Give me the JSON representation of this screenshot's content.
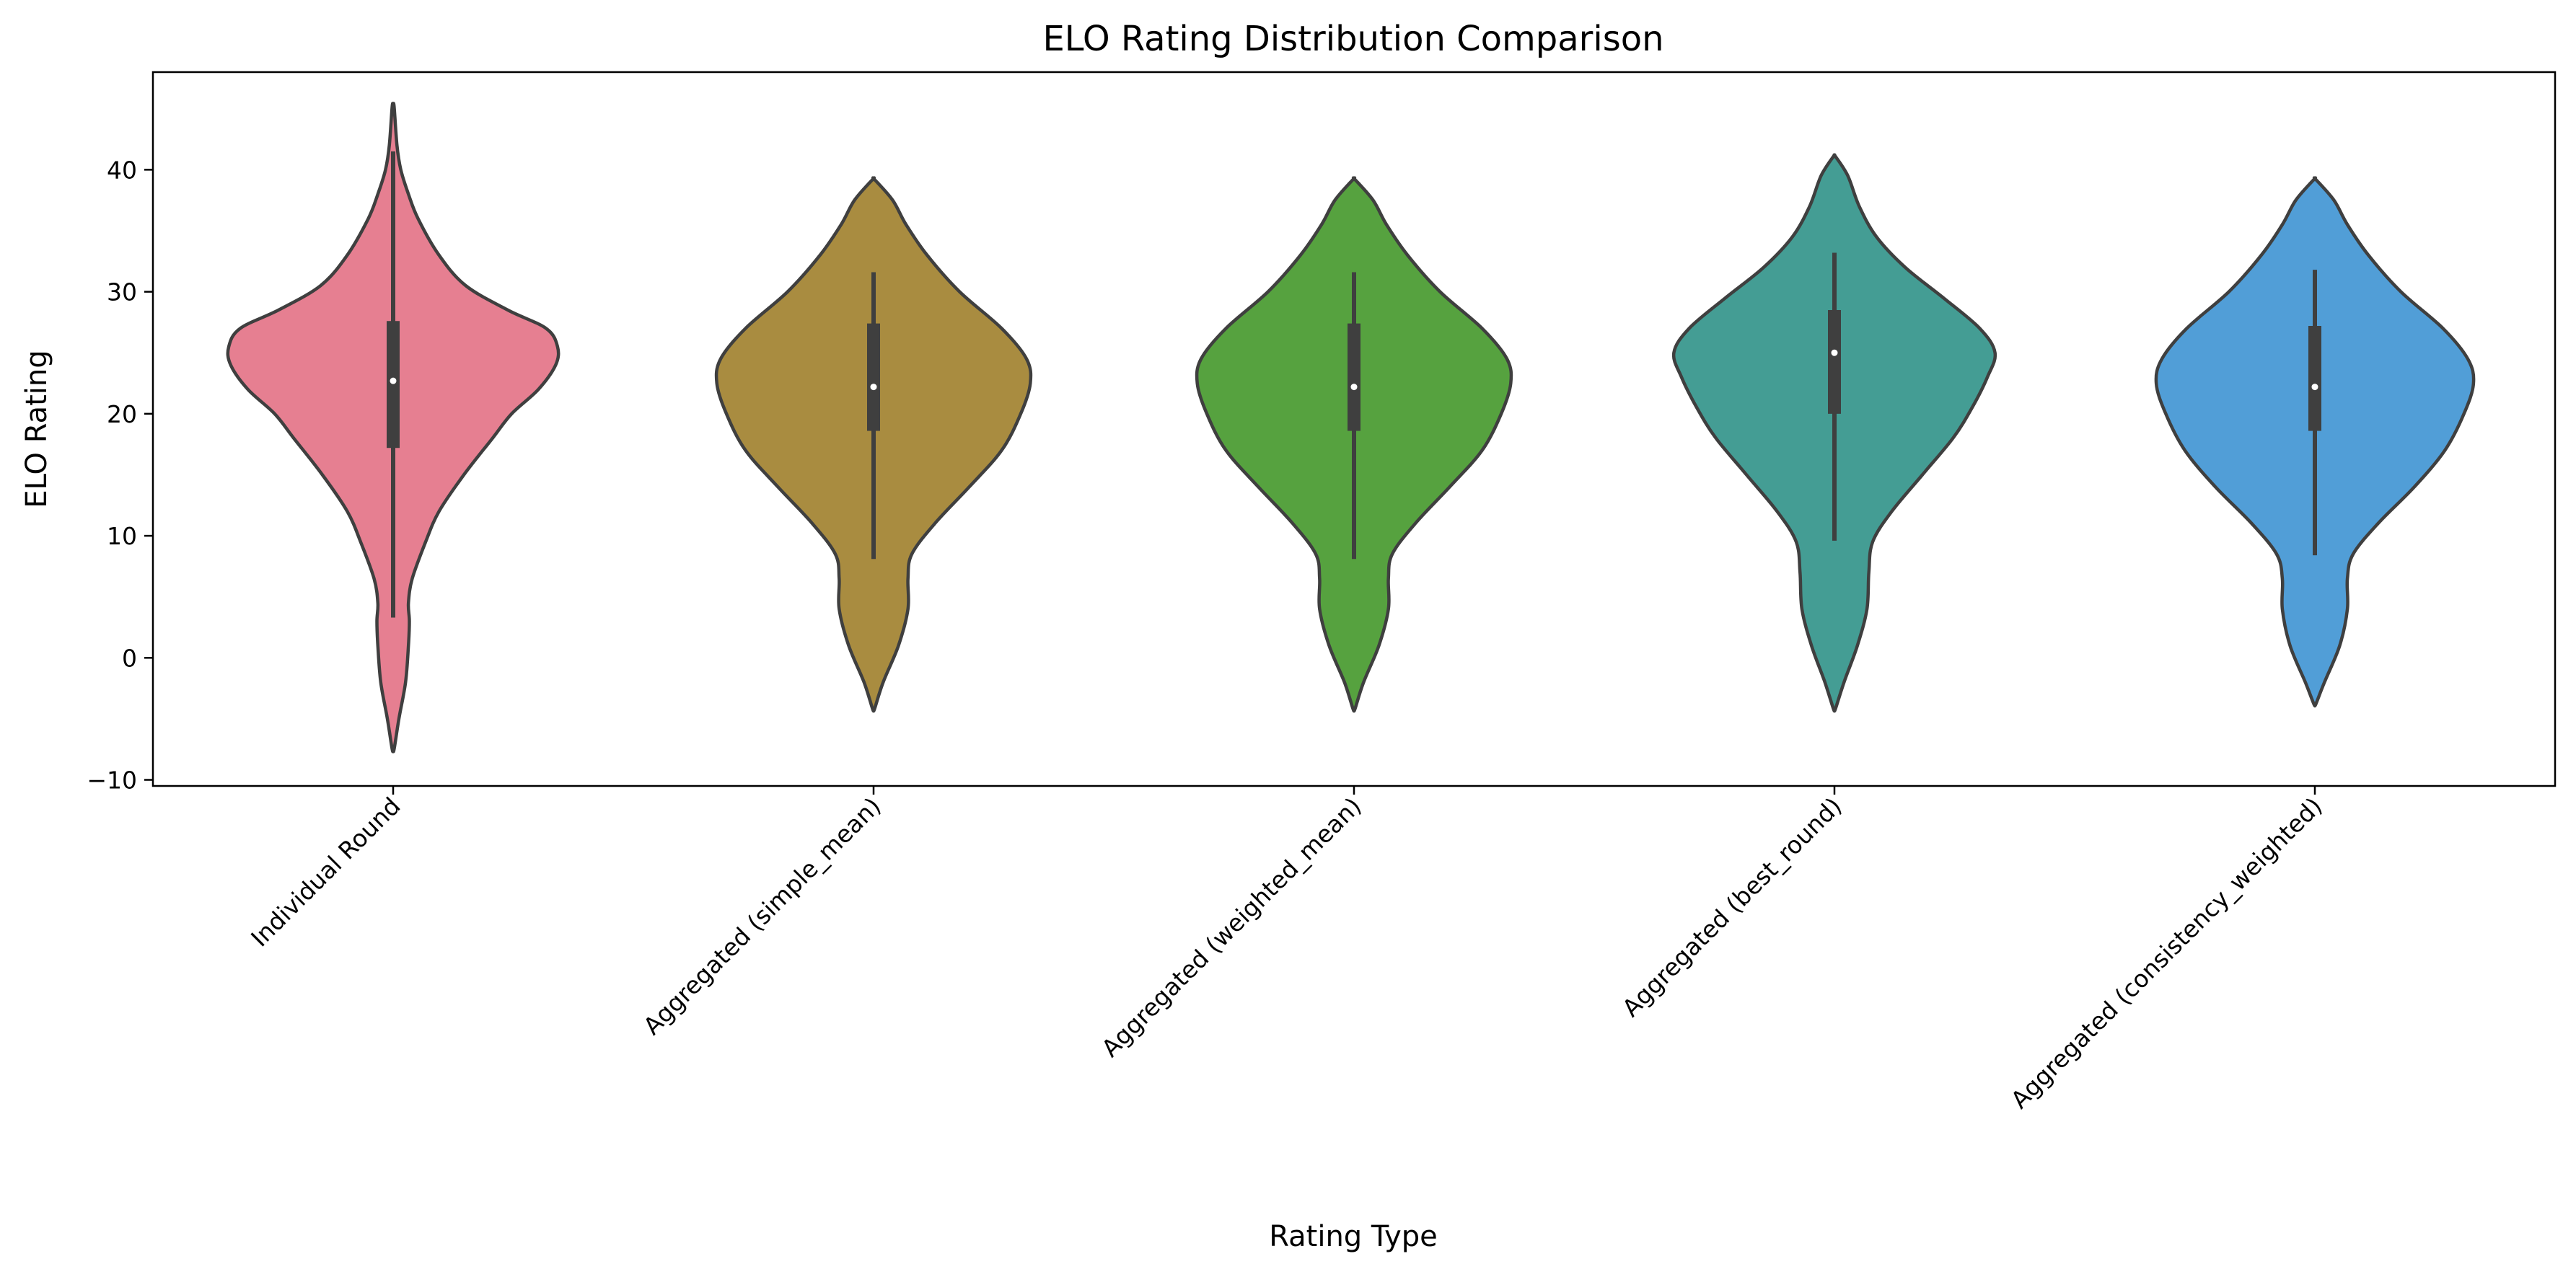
{
  "chart_data": {
    "type": "violin",
    "title": "ELO Rating Distribution Comparison",
    "xlabel": "Rating Type",
    "ylabel": "ELO Rating",
    "ylim": [
      -10.5,
      48
    ],
    "yticks": [
      -10,
      0,
      10,
      20,
      30,
      40
    ],
    "ytick_labels": [
      "−10",
      "0",
      "10",
      "20",
      "30",
      "40"
    ],
    "grid": false,
    "categories": [
      "Individual Round",
      "Aggregated (simple_mean)",
      "Aggregated (weighted_mean)",
      "Aggregated (best_round)",
      "Aggregated (consistency_weighted)"
    ],
    "colors": [
      "#e67f91",
      "#a98c40",
      "#56a23f",
      "#449d94",
      "#519ed7"
    ],
    "series": [
      {
        "min": -7.5,
        "max": 45.2,
        "whisker_low": 3.3,
        "q1": 17.2,
        "median": 22.7,
        "q3": 27.6,
        "whisker_high": 41.5,
        "density": [
          [
            -7.5,
            0.005
          ],
          [
            -5,
            0.03
          ],
          [
            -2,
            0.065
          ],
          [
            1,
            0.08
          ],
          [
            3,
            0.085
          ],
          [
            4.5,
            0.08
          ],
          [
            6.5,
            0.1
          ],
          [
            9.5,
            0.17
          ],
          [
            12,
            0.24
          ],
          [
            15,
            0.37
          ],
          [
            18,
            0.52
          ],
          [
            20,
            0.62
          ],
          [
            22,
            0.76
          ],
          [
            24,
            0.85
          ],
          [
            25.5,
            0.86
          ],
          [
            27,
            0.8
          ],
          [
            28.5,
            0.6
          ],
          [
            30.5,
            0.38
          ],
          [
            33,
            0.24
          ],
          [
            36,
            0.13
          ],
          [
            38,
            0.08
          ],
          [
            40,
            0.04
          ],
          [
            42,
            0.02
          ],
          [
            45.2,
            0.005
          ]
        ]
      },
      {
        "min": -4.2,
        "max": 39.2,
        "whisker_low": 8.1,
        "q1": 18.6,
        "median": 22.2,
        "q3": 27.4,
        "whisker_high": 31.6,
        "density": [
          [
            -4.2,
            0.005
          ],
          [
            -2,
            0.05
          ],
          [
            1,
            0.13
          ],
          [
            4,
            0.18
          ],
          [
            6.5,
            0.18
          ],
          [
            8.5,
            0.2
          ],
          [
            11,
            0.32
          ],
          [
            14,
            0.5
          ],
          [
            17,
            0.67
          ],
          [
            20,
            0.77
          ],
          [
            22.5,
            0.82
          ],
          [
            24.5,
            0.8
          ],
          [
            27,
            0.67
          ],
          [
            30,
            0.45
          ],
          [
            33,
            0.28
          ],
          [
            35.5,
            0.17
          ],
          [
            37.5,
            0.1
          ],
          [
            39.2,
            0.005
          ]
        ]
      },
      {
        "min": -4.2,
        "max": 39.2,
        "whisker_low": 8.1,
        "q1": 18.6,
        "median": 22.2,
        "q3": 27.4,
        "whisker_high": 31.6,
        "density": [
          [
            -4.2,
            0.005
          ],
          [
            -2,
            0.05
          ],
          [
            1,
            0.13
          ],
          [
            4,
            0.18
          ],
          [
            6.5,
            0.18
          ],
          [
            8.5,
            0.2
          ],
          [
            11,
            0.32
          ],
          [
            14,
            0.5
          ],
          [
            17,
            0.67
          ],
          [
            20,
            0.77
          ],
          [
            22.5,
            0.82
          ],
          [
            24.5,
            0.8
          ],
          [
            27,
            0.67
          ],
          [
            30,
            0.45
          ],
          [
            33,
            0.28
          ],
          [
            35.5,
            0.17
          ],
          [
            37.5,
            0.1
          ],
          [
            39.2,
            0.005
          ]
        ]
      },
      {
        "min": -4.2,
        "max": 41.1,
        "whisker_low": 9.6,
        "q1": 20,
        "median": 25,
        "q3": 28.5,
        "whisker_high": 33.2,
        "density": [
          [
            -4.2,
            0.005
          ],
          [
            -2,
            0.05
          ],
          [
            1,
            0.12
          ],
          [
            4,
            0.17
          ],
          [
            7,
            0.18
          ],
          [
            9.5,
            0.2
          ],
          [
            12,
            0.3
          ],
          [
            15,
            0.46
          ],
          [
            18,
            0.62
          ],
          [
            20.5,
            0.72
          ],
          [
            23,
            0.8
          ],
          [
            25,
            0.84
          ],
          [
            27,
            0.76
          ],
          [
            29.5,
            0.57
          ],
          [
            32,
            0.37
          ],
          [
            34.5,
            0.22
          ],
          [
            37,
            0.13
          ],
          [
            39.5,
            0.07
          ],
          [
            41.1,
            0.005
          ]
        ]
      },
      {
        "min": -3.8,
        "max": 39.2,
        "whisker_low": 8.4,
        "q1": 18.6,
        "median": 22.2,
        "q3": 27.2,
        "whisker_high": 31.8,
        "density": [
          [
            -3.8,
            0.005
          ],
          [
            -2,
            0.05
          ],
          [
            1,
            0.13
          ],
          [
            4,
            0.17
          ],
          [
            6.5,
            0.17
          ],
          [
            8.5,
            0.2
          ],
          [
            11,
            0.33
          ],
          [
            14,
            0.52
          ],
          [
            17,
            0.68
          ],
          [
            20,
            0.78
          ],
          [
            22.5,
            0.83
          ],
          [
            24.5,
            0.8
          ],
          [
            27,
            0.67
          ],
          [
            30,
            0.45
          ],
          [
            33,
            0.28
          ],
          [
            35.5,
            0.17
          ],
          [
            37.5,
            0.1
          ],
          [
            39.2,
            0.005
          ]
        ]
      }
    ]
  }
}
